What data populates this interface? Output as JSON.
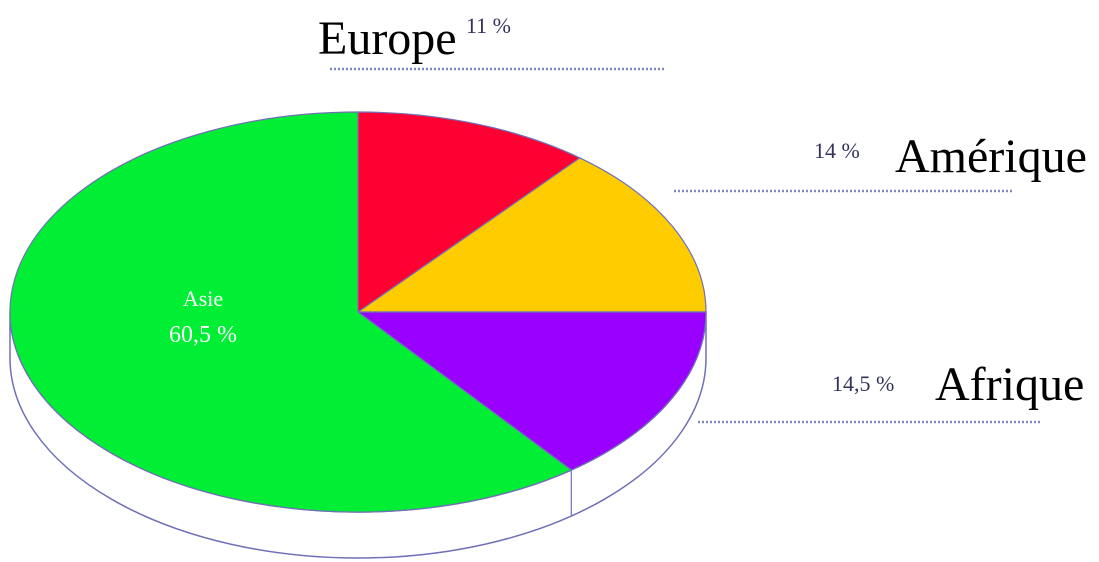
{
  "chart_data": {
    "type": "pie",
    "title": "",
    "slices": [
      {
        "name": "Europe",
        "value": 11,
        "label_pct": "11 %",
        "color": "#ff0033"
      },
      {
        "name": "Amérique",
        "value": 14,
        "label_pct": "14 %",
        "color": "#ffcc00"
      },
      {
        "name": "Afrique",
        "value": 14.5,
        "label_pct": "14,5 %",
        "color": "#9900ff"
      },
      {
        "name": "Asie",
        "value": 60.5,
        "label_pct": "60,5 %",
        "color": "#00ee33"
      }
    ],
    "start_angle_deg": 270,
    "direction": "clockwise",
    "style": "3d",
    "leader_line_color": "#7f8bc0",
    "outline_color": "#7070b8"
  }
}
